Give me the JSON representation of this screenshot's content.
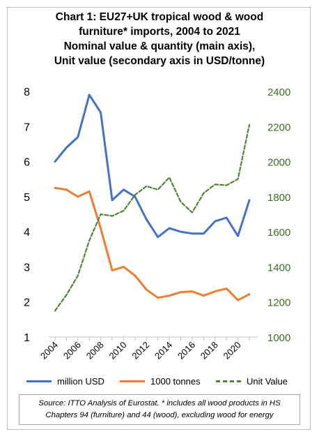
{
  "title_lines": [
    "Chart 1: EU27+UK tropical wood & wood",
    "furniture* imports, 2004 to 2021",
    "Nominal value & quantity (main axis),",
    "Unit value (secondary axis in USD/tonne)"
  ],
  "chart_data": {
    "type": "line",
    "x": [
      2004,
      2005,
      2006,
      2007,
      2008,
      2009,
      2010,
      2011,
      2012,
      2013,
      2014,
      2015,
      2016,
      2017,
      2018,
      2019,
      2020,
      2021
    ],
    "xticks": [
      "2004",
      "2006",
      "2008",
      "2010",
      "2012",
      "2014",
      "2016",
      "2018",
      "2020"
    ],
    "ylim": [
      1,
      8
    ],
    "yticks": [
      "1",
      "2",
      "3",
      "4",
      "5",
      "6",
      "7",
      "8"
    ],
    "y2lim": [
      1000,
      2400
    ],
    "y2ticks": [
      "1000",
      "1200",
      "1400",
      "1600",
      "1800",
      "2000",
      "2200",
      "2400"
    ],
    "grid": false,
    "legend_position": "bottom",
    "series": [
      {
        "name": "million USD",
        "axis": "left",
        "style": "solid",
        "color": "#4472c4",
        "values": [
          6.0,
          6.4,
          6.7,
          7.9,
          7.4,
          4.9,
          5.2,
          5.0,
          4.35,
          3.85,
          4.1,
          4.0,
          3.95,
          3.95,
          4.3,
          4.4,
          3.88,
          4.9
        ]
      },
      {
        "name": "1000 tonnes",
        "axis": "left",
        "style": "solid",
        "color": "#ed7d31",
        "values": [
          5.25,
          5.2,
          5.0,
          5.15,
          4.1,
          2.9,
          3.0,
          2.75,
          2.35,
          2.12,
          2.18,
          2.28,
          2.3,
          2.18,
          2.3,
          2.38,
          2.05,
          2.22
        ]
      },
      {
        "name": "Unit Value",
        "axis": "right",
        "style": "dashed",
        "color": "#548235",
        "values": [
          1150,
          1240,
          1350,
          1550,
          1700,
          1690,
          1720,
          1810,
          1860,
          1840,
          1910,
          1770,
          1710,
          1820,
          1870,
          1865,
          1900,
          2210
        ]
      }
    ]
  },
  "source": {
    "line1": "Source: ITTO Analysis of Eurostat. * includes all wood products in HS",
    "line2": "Chapters 94 (furniture) and 44 (wood), excluding wood for energy"
  }
}
